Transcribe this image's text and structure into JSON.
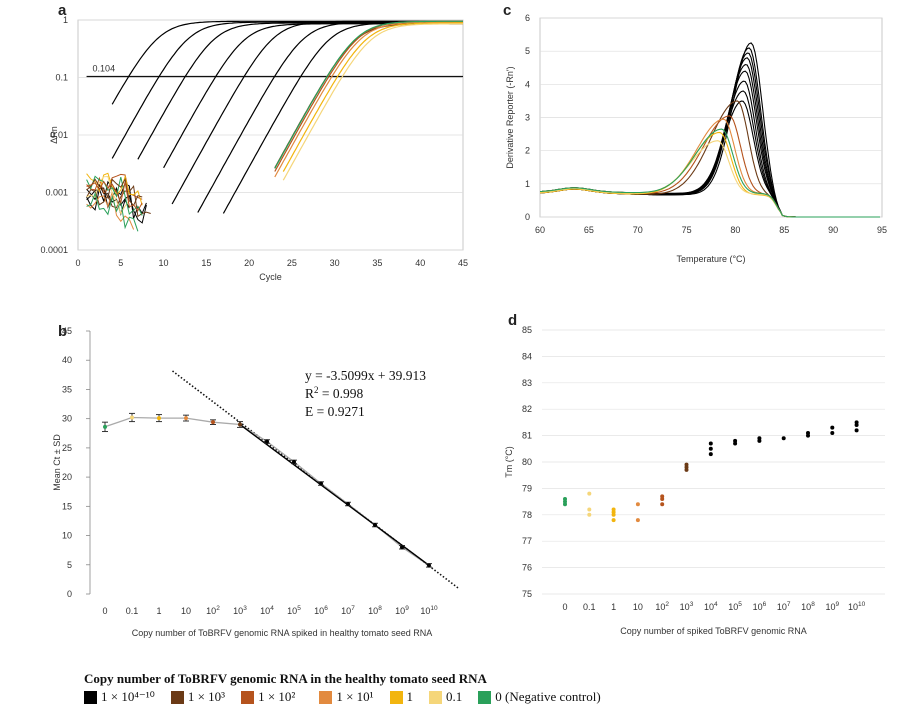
{
  "panels": {
    "a": {
      "letter": "a"
    },
    "b": {
      "letter": "b"
    },
    "c": {
      "letter": "c"
    },
    "d": {
      "letter": "d"
    }
  },
  "colors": {
    "1e4-10": "#000000",
    "1e3": "#6b3a16",
    "1e2": "#b5531d",
    "1e1": "#e28a3f",
    "1": "#f2b50f",
    "0.1": "#f5d67a",
    "0": "#2aa05a",
    "dotted": "#111111"
  },
  "legend": {
    "title": "Copy number of ToBRFV genomic RNA in the healthy tomato seed RNA",
    "items": [
      {
        "key": "1e4-10",
        "label": "1 × 10⁴⁻¹⁰"
      },
      {
        "key": "1e3",
        "label": "1 × 10³"
      },
      {
        "key": "1e2",
        "label": "1 × 10²"
      },
      {
        "key": "1e1",
        "label": "1 × 10¹"
      },
      {
        "key": "1",
        "label": "1"
      },
      {
        "key": "0.1",
        "label": "0.1"
      },
      {
        "key": "0",
        "label": "0 (Negative control)"
      }
    ]
  },
  "chart_data": [
    {
      "id": "a",
      "type": "line",
      "title": "",
      "xlabel": "Cycle",
      "ylabel": "ΔRn",
      "xlim": [
        0,
        45
      ],
      "ylim": [
        0.0001,
        1
      ],
      "yscale": "log",
      "xticks": [
        0,
        5,
        10,
        15,
        20,
        25,
        30,
        35,
        40,
        45
      ],
      "yticks": [
        {
          "v": 0.0001,
          "label": "0.0001"
        },
        {
          "v": 0.001,
          "label": "0.001"
        },
        {
          "v": 0.01,
          "label": "0.01"
        },
        {
          "v": 0.1,
          "label": "0.1"
        },
        {
          "v": 1,
          "label": "1"
        }
      ],
      "threshold": {
        "value": 0.104,
        "label": "0.104"
      },
      "series": [
        {
          "name": "1e10",
          "color_key": "1e4-10",
          "start": 4,
          "ct": 6
        },
        {
          "name": "1e9",
          "color_key": "1e4-10",
          "start": 4,
          "ct": 9.5
        },
        {
          "name": "1e8",
          "color_key": "1e4-10",
          "start": 7,
          "ct": 12.5
        },
        {
          "name": "1e7",
          "color_key": "1e4-10",
          "start": 10,
          "ct": 16
        },
        {
          "name": "1e6",
          "color_key": "1e4-10",
          "start": 11,
          "ct": 19.5
        },
        {
          "name": "1e5",
          "color_key": "1e4-10",
          "start": 14,
          "ct": 23
        },
        {
          "name": "1e4",
          "color_key": "1e4-10",
          "start": 17,
          "ct": 26
        },
        {
          "name": "1e3",
          "color_key": "1e3",
          "start": 23,
          "ct": 29
        },
        {
          "name": "1e2",
          "color_key": "1e2",
          "start": 23,
          "ct": 29.4
        },
        {
          "name": "1e1",
          "color_key": "1e1",
          "start": 23,
          "ct": 29.7
        },
        {
          "name": "1",
          "color_key": "1",
          "start": 24,
          "ct": 30.3
        },
        {
          "name": "0.1",
          "color_key": "0.1",
          "start": 24,
          "ct": 30.8
        },
        {
          "name": "neg",
          "color_key": "0",
          "start": 23,
          "ct": 29.2
        }
      ]
    },
    {
      "id": "b",
      "type": "scatter",
      "xlabel": "Copy number of ToBRFV genomic RNA spiked in healthy tomato seed RNA",
      "ylabel": "Mean Ct ± SD",
      "ylim": [
        0,
        45
      ],
      "yticks": [
        0,
        5,
        10,
        15,
        20,
        25,
        30,
        35,
        40,
        45
      ],
      "categories": [
        {
          "base": "0",
          "exp": ""
        },
        {
          "base": "0.1",
          "exp": ""
        },
        {
          "base": "1",
          "exp": ""
        },
        {
          "base": "10",
          "exp": ""
        },
        {
          "base": "10",
          "exp": "2"
        },
        {
          "base": "10",
          "exp": "3"
        },
        {
          "base": "10",
          "exp": "4"
        },
        {
          "base": "10",
          "exp": "5"
        },
        {
          "base": "10",
          "exp": "6"
        },
        {
          "base": "10",
          "exp": "7"
        },
        {
          "base": "10",
          "exp": "8"
        },
        {
          "base": "10",
          "exp": "9"
        },
        {
          "base": "10",
          "exp": "10"
        }
      ],
      "values": [
        28.6,
        30.2,
        30.1,
        30.1,
        29.4,
        29.0,
        26.1,
        22.6,
        18.9,
        15.4,
        11.8,
        8.0,
        4.9
      ],
      "sd": [
        0.8,
        0.7,
        0.6,
        0.5,
        0.4,
        0.5,
        0.3,
        0.3,
        0.3,
        0.3,
        0.3,
        0.3,
        0.3
      ],
      "fit": {
        "slope": -3.5099,
        "intercept": 39.913,
        "r2": 0.998,
        "e": 0.9271
      },
      "equation_text": "y = -3.5099x + 39.913",
      "r2_label": "R",
      "r2_exp": "2",
      "r2_value": " = 0.998",
      "e_text": "E = 0.9271"
    },
    {
      "id": "c",
      "type": "line",
      "xlabel": "Temperature (°C)",
      "ylabel": "Derivative Reporter (-Rn')",
      "xlim": [
        60,
        95
      ],
      "ylim": [
        0,
        6
      ],
      "xticks": [
        60,
        65,
        70,
        75,
        80,
        85,
        90,
        95
      ],
      "yticks": [
        0,
        1,
        2,
        3,
        4,
        5,
        6
      ],
      "series": [
        {
          "name": "1e10-a",
          "color_key": "1e4-10",
          "peak_t": 81.6,
          "peak_h": 5.25
        },
        {
          "name": "1e10-b",
          "color_key": "1e4-10",
          "peak_t": 81.4,
          "peak_h": 5.1
        },
        {
          "name": "1e9-a",
          "color_key": "1e4-10",
          "peak_t": 81.3,
          "peak_h": 4.95
        },
        {
          "name": "1e9-b",
          "color_key": "1e4-10",
          "peak_t": 81.2,
          "peak_h": 4.8
        },
        {
          "name": "1e8",
          "color_key": "1e4-10",
          "peak_t": 81.1,
          "peak_h": 4.6
        },
        {
          "name": "1e7",
          "color_key": "1e4-10",
          "peak_t": 81.0,
          "peak_h": 4.4
        },
        {
          "name": "1e6",
          "color_key": "1e4-10",
          "peak_t": 80.9,
          "peak_h": 4.1
        },
        {
          "name": "1e5",
          "color_key": "1e4-10",
          "peak_t": 80.8,
          "peak_h": 3.8
        },
        {
          "name": "1e4",
          "color_key": "1e4-10",
          "peak_t": 80.7,
          "peak_h": 3.5
        },
        {
          "name": "1e3",
          "color_key": "1e3",
          "peak_t": 80.2,
          "peak_h": 3.5
        },
        {
          "name": "1e2",
          "color_key": "1e2",
          "peak_t": 79.4,
          "peak_h": 3.05
        },
        {
          "name": "1e1",
          "color_key": "1e1",
          "peak_t": 78.8,
          "peak_h": 2.95
        },
        {
          "name": "1",
          "color_key": "1",
          "peak_t": 78.4,
          "peak_h": 2.55
        },
        {
          "name": "0.1",
          "color_key": "0.1",
          "peak_t": 78.2,
          "peak_h": 2.3
        },
        {
          "name": "neg",
          "color_key": "0",
          "peak_t": 78.6,
          "peak_h": 2.65
        }
      ]
    },
    {
      "id": "d",
      "type": "scatter",
      "xlabel": "Copy number of spiked ToBRFV genomic RNA",
      "ylabel": "Tm (°C)",
      "ylim": [
        75,
        85
      ],
      "yticks": [
        75,
        76,
        77,
        78,
        79,
        80,
        81,
        82,
        83,
        84,
        85
      ],
      "categories": [
        {
          "base": "0",
          "exp": ""
        },
        {
          "base": "0.1",
          "exp": ""
        },
        {
          "base": "1",
          "exp": ""
        },
        {
          "base": "10",
          "exp": ""
        },
        {
          "base": "10",
          "exp": "2"
        },
        {
          "base": "10",
          "exp": "3"
        },
        {
          "base": "10",
          "exp": "4"
        },
        {
          "base": "10",
          "exp": "5"
        },
        {
          "base": "10",
          "exp": "6"
        },
        {
          "base": "10",
          "exp": "7"
        },
        {
          "base": "10",
          "exp": "8"
        },
        {
          "base": "10",
          "exp": "9"
        },
        {
          "base": "10",
          "exp": "10"
        }
      ],
      "points": [
        {
          "cat": 0,
          "color_key": "0",
          "values": [
            78.4,
            78.5,
            78.6
          ]
        },
        {
          "cat": 1,
          "color_key": "0.1",
          "values": [
            78.0,
            78.2,
            78.8
          ]
        },
        {
          "cat": 2,
          "color_key": "1",
          "values": [
            77.8,
            78.0,
            78.1,
            78.2
          ]
        },
        {
          "cat": 3,
          "color_key": "1e1",
          "values": [
            77.8,
            78.4
          ]
        },
        {
          "cat": 4,
          "color_key": "1e2",
          "values": [
            78.4,
            78.6,
            78.7
          ]
        },
        {
          "cat": 5,
          "color_key": "1e3",
          "values": [
            79.7,
            79.8,
            79.9
          ]
        },
        {
          "cat": 6,
          "color_key": "1e4-10",
          "values": [
            80.3,
            80.5,
            80.7
          ]
        },
        {
          "cat": 7,
          "color_key": "1e4-10",
          "values": [
            80.7,
            80.8
          ]
        },
        {
          "cat": 8,
          "color_key": "1e4-10",
          "values": [
            80.8,
            80.9
          ]
        },
        {
          "cat": 9,
          "color_key": "1e4-10",
          "values": [
            80.9
          ]
        },
        {
          "cat": 10,
          "color_key": "1e4-10",
          "values": [
            81.0,
            81.1
          ]
        },
        {
          "cat": 11,
          "color_key": "1e4-10",
          "values": [
            81.1,
            81.3
          ]
        },
        {
          "cat": 12,
          "color_key": "1e4-10",
          "values": [
            81.2,
            81.4,
            81.5
          ]
        }
      ]
    }
  ]
}
